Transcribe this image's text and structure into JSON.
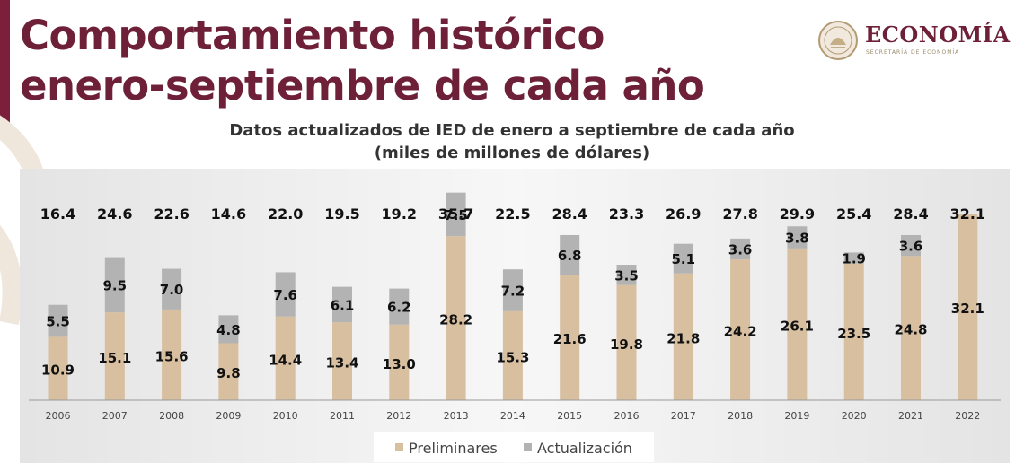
{
  "header": {
    "title_line1": "Comportamiento histórico",
    "title_line2": "enero-septiembre de cada año",
    "logo_text": "ECONOMÍA",
    "logo_sub": "SECRETARÍA DE ECONOMÍA"
  },
  "colors": {
    "brand": "#6d2038",
    "preliminares": "#d8bf9f",
    "actualizacion": "#b3b3b3",
    "panel": "#e4e4e4"
  },
  "chart_data": {
    "type": "bar",
    "stacked": true,
    "title": "Datos actualizados de IED de enero a septiembre de cada año",
    "subtitle": "(miles de millones de dólares)",
    "categories": [
      "2006",
      "2007",
      "2008",
      "2009",
      "2010",
      "2011",
      "2012",
      "2013",
      "2014",
      "2015",
      "2016",
      "2017",
      "2018",
      "2019",
      "2020",
      "2021",
      "2022"
    ],
    "series": [
      {
        "name": "Preliminares",
        "color": "#d8bf9f",
        "values": [
          10.9,
          15.1,
          15.6,
          9.8,
          14.4,
          13.4,
          13.0,
          28.2,
          15.3,
          21.6,
          19.8,
          21.8,
          24.2,
          26.1,
          23.5,
          24.8,
          32.1
        ]
      },
      {
        "name": "Actualización",
        "color": "#b3b3b3",
        "values": [
          5.5,
          9.5,
          7.0,
          4.8,
          7.6,
          6.1,
          6.2,
          7.5,
          7.2,
          6.8,
          3.5,
          5.1,
          3.6,
          3.8,
          1.9,
          3.6,
          null
        ]
      }
    ],
    "totals": [
      "16.4",
      "24.6",
      "22.6",
      "14.6",
      "22.0",
      "19.5",
      "19.2",
      "35.7",
      "22.5",
      "28.4",
      "23.3",
      "26.9",
      "27.8",
      "29.9",
      "25.4",
      "28.4",
      "32.1"
    ],
    "ylim": [
      0,
      40
    ],
    "grid": false,
    "legend_position": "bottom"
  }
}
